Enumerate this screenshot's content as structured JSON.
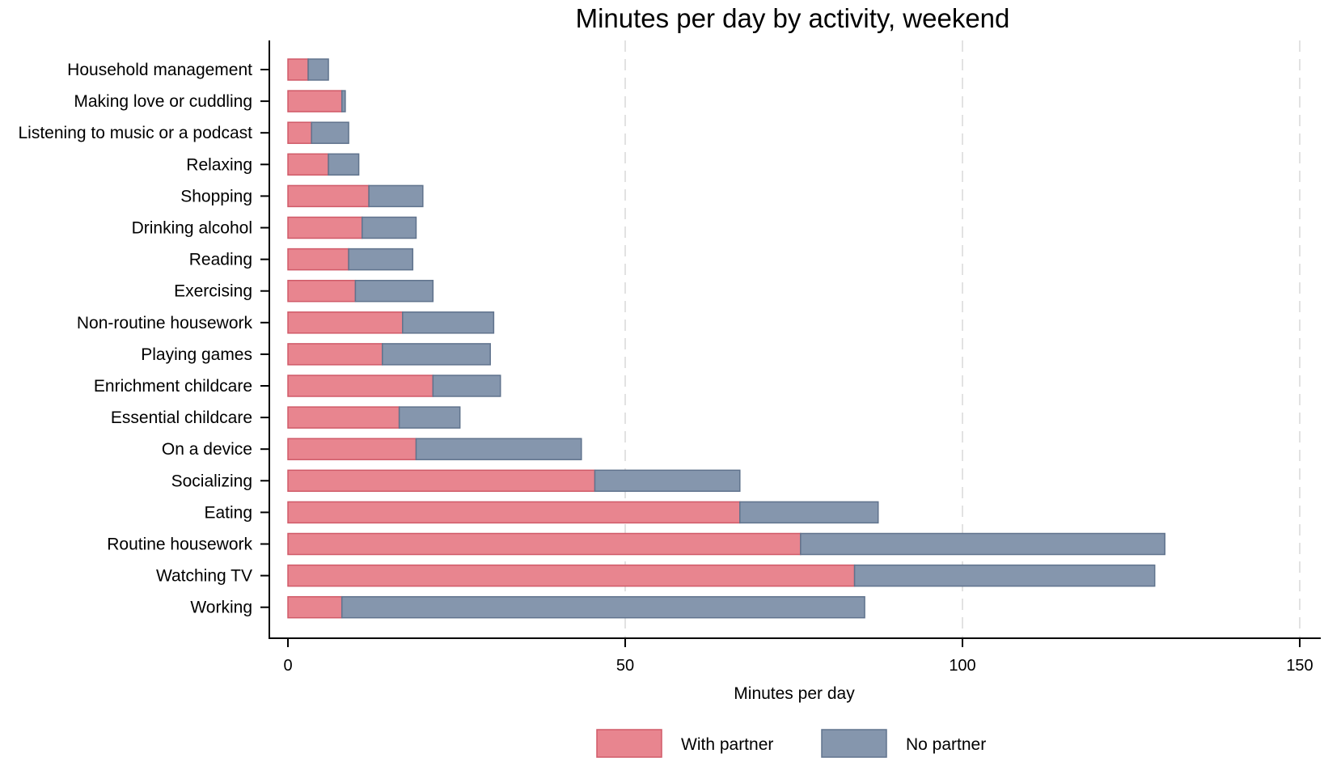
{
  "chart_data": {
    "type": "bar",
    "orientation": "horizontal",
    "stacked": true,
    "title": "Minutes per day by activity, weekend",
    "xlabel": "Minutes per day",
    "ylabel": "",
    "xlim": [
      0,
      150
    ],
    "xticks": [
      0,
      50,
      100,
      150
    ],
    "xtick_labels": [
      "0",
      "50",
      "100",
      "150"
    ],
    "grid": "vertical dashed",
    "legend_position": "bottom",
    "categories": [
      "Household management",
      "Making love or cuddling",
      "Listening to music or a podcast",
      "Relaxing",
      "Shopping",
      "Drinking alcohol",
      "Reading",
      "Exercising",
      "Non-routine housework",
      "Playing games",
      "Enrichment childcare",
      "Essential childcare",
      "On a device",
      "Socializing",
      "Eating",
      "Routine housework",
      "Watching TV",
      "Working"
    ],
    "series": [
      {
        "name": "With partner",
        "color": "#e8858f",
        "edge": "#d05a68",
        "values": [
          3,
          8,
          3.5,
          6,
          12,
          11,
          9,
          10,
          17,
          14,
          21.5,
          16.5,
          19,
          45.5,
          67,
          76,
          84,
          8
        ]
      },
      {
        "name": "No partner",
        "color": "#8596ad",
        "edge": "#60738d",
        "values": [
          3,
          0.5,
          5.5,
          4.5,
          8,
          8,
          9.5,
          11.5,
          13.5,
          16,
          10,
          9,
          24.5,
          21.5,
          20.5,
          54,
          44.5,
          77.5
        ]
      }
    ]
  }
}
